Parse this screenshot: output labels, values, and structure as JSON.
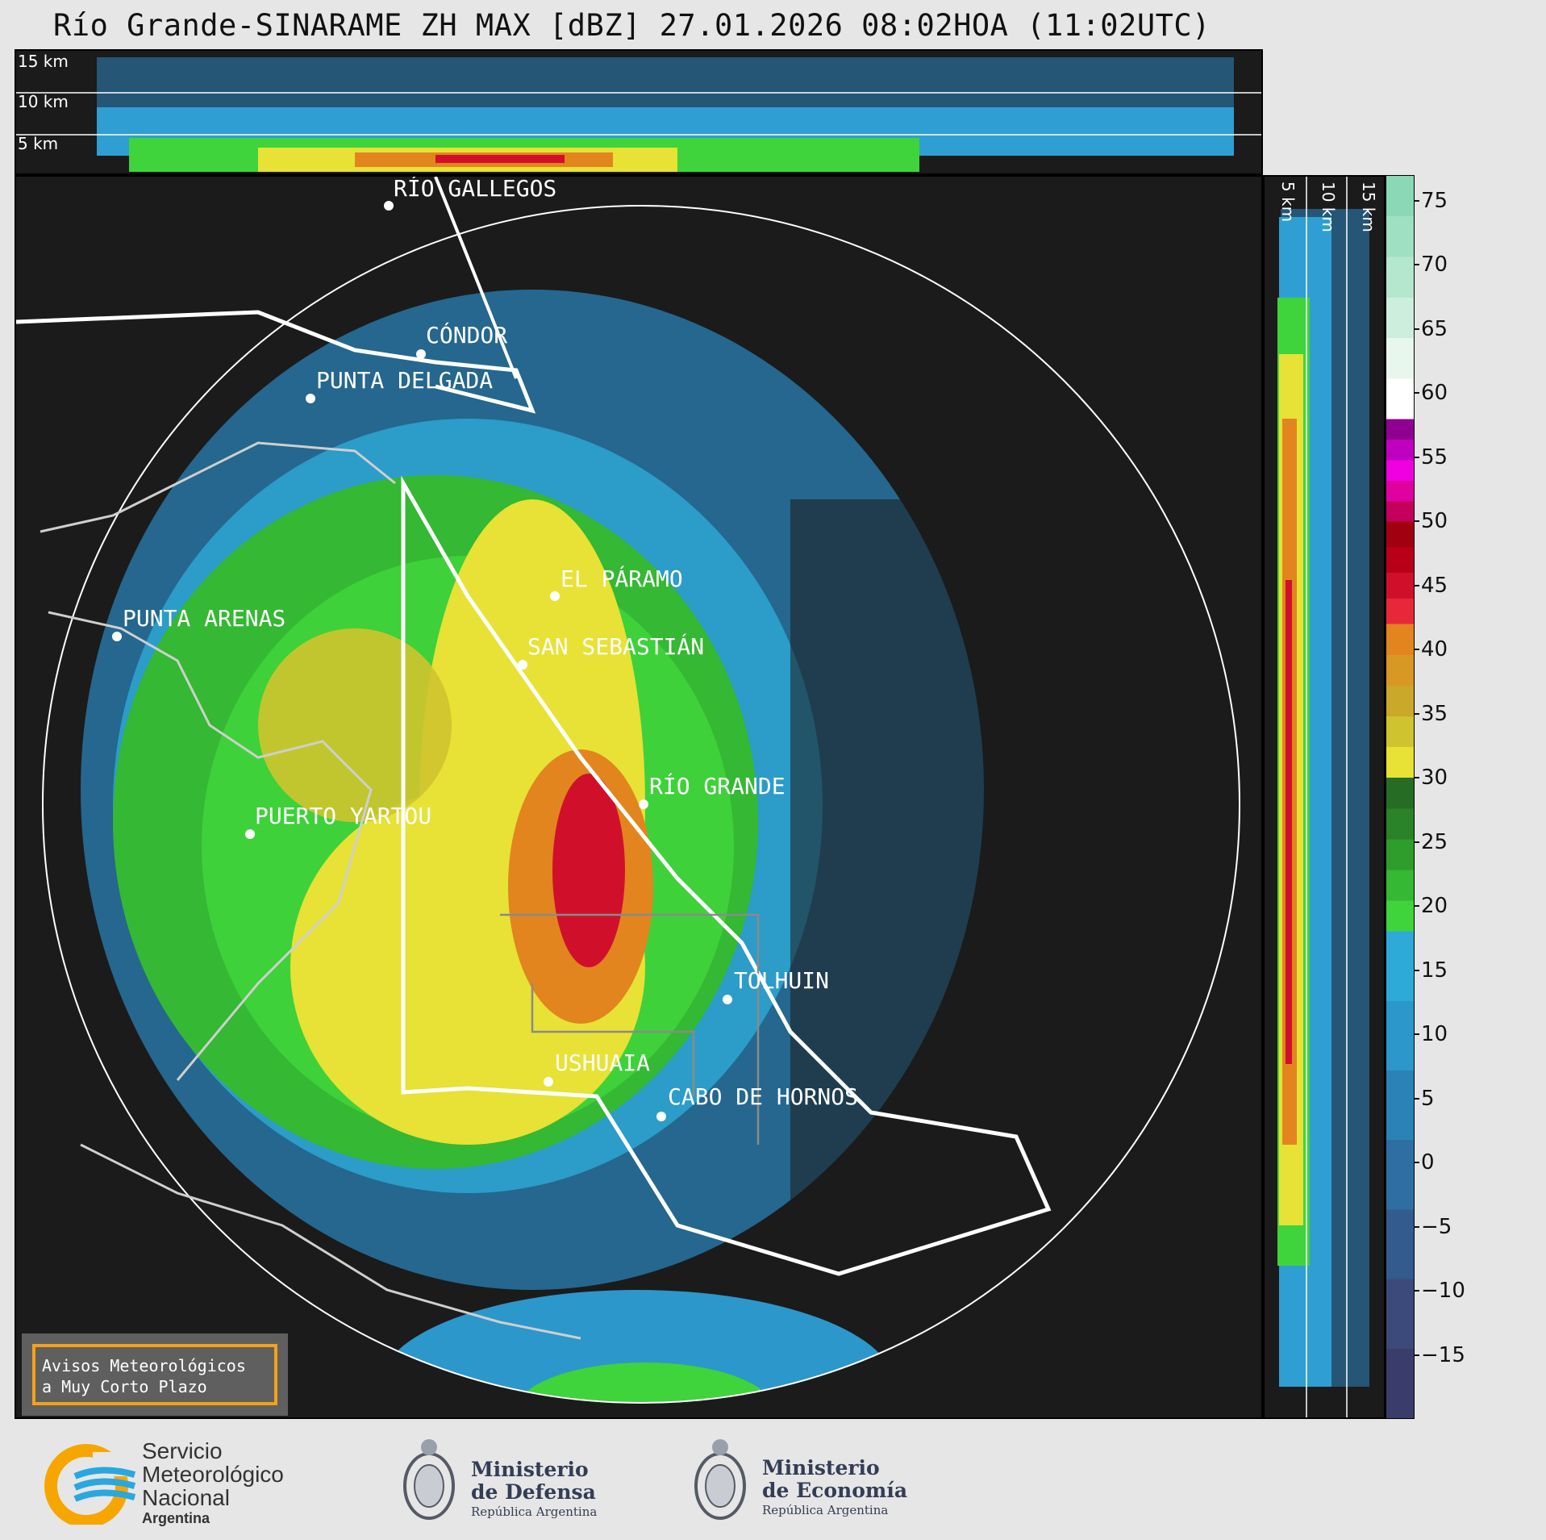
{
  "title": "Río Grande-SINARAME ZH MAX [dBZ] 27.01.2026 08:02HOA (11:02UTC)",
  "top_panel": {
    "altitude_labels": [
      "15 km",
      "10 km",
      "5 km"
    ]
  },
  "side_panel": {
    "altitude_labels": [
      "5 km",
      "10 km",
      "15 km"
    ]
  },
  "cities": [
    {
      "name": "RÍO GALLEGOS"
    },
    {
      "name": "CÓNDOR"
    },
    {
      "name": "PUNTA DELGADA"
    },
    {
      "name": "PUNTA ARENAS"
    },
    {
      "name": "EL PÁRAMO"
    },
    {
      "name": "SAN SEBASTIÁN"
    },
    {
      "name": "RÍO GRANDE"
    },
    {
      "name": "PUERTO YARTOU"
    },
    {
      "name": "TOLHUIN"
    },
    {
      "name": "USHUAIA"
    },
    {
      "name": "CABO DE HORNOS"
    }
  ],
  "colorbar": {
    "unit": "dBZ",
    "ticks": [
      "75",
      "70",
      "65",
      "60",
      "55",
      "50",
      "45",
      "40",
      "35",
      "30",
      "25",
      "20",
      "15",
      "10",
      "5",
      "0",
      "−5",
      "−10",
      "−15"
    ],
    "tick_values": [
      75,
      70,
      65,
      60,
      55,
      50,
      45,
      40,
      35,
      30,
      25,
      20,
      15,
      10,
      5,
      0,
      -5,
      -10,
      -15
    ],
    "range": [
      -20,
      77
    ],
    "segments": [
      {
        "from": -20,
        "to": 18,
        "colors": [
          "#3a3d6b",
          "#3b4a7a",
          "#345b8e",
          "#2f6ea3",
          "#2a82b6",
          "#2c97cb",
          "#2eaad8"
        ]
      },
      {
        "from": 18,
        "to": 30,
        "colors": [
          "#3fd43b",
          "#35b833",
          "#2e9d2c",
          "#2a8328",
          "#276c25"
        ]
      },
      {
        "from": 30,
        "to": 42,
        "colors": [
          "#e7e235",
          "#cfc42f",
          "#c9a82a",
          "#d89824",
          "#e2851e"
        ]
      },
      {
        "from": 42,
        "to": 50,
        "colors": [
          "#e8283a",
          "#d0102a",
          "#b80018",
          "#a00010"
        ]
      },
      {
        "from": 50,
        "to": 58,
        "colors": [
          "#c4005c",
          "#e000a0",
          "#f000e0",
          "#c000c0",
          "#900090"
        ]
      },
      {
        "from": 58,
        "to": 77,
        "colors": [
          "#ffffff",
          "#e7f7ee",
          "#cdeedd",
          "#b5e7cf",
          "#9fe0c2",
          "#8ad8b6"
        ]
      }
    ]
  },
  "notice": {
    "line1": "Avisos Meteorológicos",
    "line2": "a Muy Corto Plazo",
    "border_color": "#f3a21a"
  },
  "footer": {
    "smn": {
      "line1": "Servicio",
      "line2": "Meteorológico",
      "line3": "Nacional",
      "line4": "Argentina"
    },
    "defensa": {
      "line1": "Ministerio",
      "line2": "de Defensa",
      "line3": "República Argentina"
    },
    "economia": {
      "line1": "Ministerio",
      "line2": "de Economía",
      "line3": "República Argentina"
    }
  },
  "colors": {
    "background": "#e6e6e6",
    "panel": "#1b1b1b",
    "smn_orange": "#f7a600",
    "smn_blue": "#2aa7df"
  }
}
